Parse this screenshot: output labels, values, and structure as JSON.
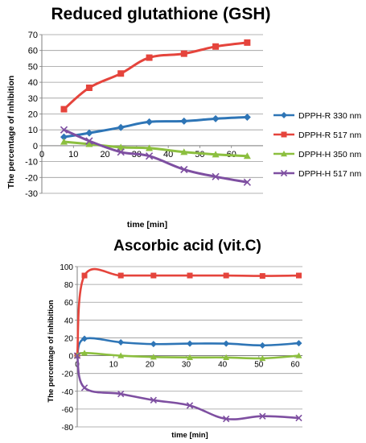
{
  "colors": {
    "blue": "#2E75B6",
    "red": "#E5443C",
    "green": "#8CBF3F",
    "purple": "#7E4FA1",
    "grid": "#9a9a9a",
    "axis": "#7f7f7f"
  },
  "chart_data": [
    {
      "type": "line",
      "title": "Reduced glutathione (GSH)",
      "xlabel": "time  [min]",
      "ylabel": "The percentage of inhibition",
      "xlim": [
        0,
        70
      ],
      "ylim": [
        -30,
        70
      ],
      "x_ticks": [
        0,
        10,
        20,
        30,
        40,
        50,
        60
      ],
      "y_ticks": [
        -30,
        -20,
        -10,
        0,
        10,
        20,
        30,
        40,
        50,
        60,
        70
      ],
      "grid": "horizontal",
      "legend": "right",
      "series": [
        {
          "name": "DPPH-R 330 nm",
          "color": "blue",
          "marker": "diamond",
          "x": [
            7,
            15,
            25,
            34,
            45,
            55,
            65
          ],
          "y": [
            5.5,
            8,
            11.5,
            15,
            15.5,
            17,
            18
          ]
        },
        {
          "name": "DPPH-R 517 nm",
          "color": "red",
          "marker": "square",
          "x": [
            7,
            15,
            25,
            34,
            45,
            55,
            65
          ],
          "y": [
            23,
            36.5,
            45.5,
            55.5,
            58,
            62.5,
            65
          ]
        },
        {
          "name": "DPPH-H 350 nm",
          "color": "green",
          "marker": "triangle",
          "x": [
            7,
            15,
            25,
            34,
            45,
            55,
            65
          ],
          "y": [
            2.5,
            1,
            -1,
            -1.5,
            -4,
            -5.5,
            -6.5
          ]
        },
        {
          "name": "DPPH-H 517 nm",
          "color": "purple",
          "marker": "x",
          "x": [
            7,
            15,
            25,
            34,
            45,
            55,
            65
          ],
          "y": [
            10,
            3,
            -4,
            -6.5,
            -15,
            -19.5,
            -23
          ]
        }
      ]
    },
    {
      "type": "line",
      "title": "Ascorbic acid (vit.C)",
      "xlabel": "time [min]",
      "ylabel": "The percentage of inhibition",
      "xlim": [
        0,
        62
      ],
      "ylim": [
        -80,
        100
      ],
      "x_ticks": [
        0,
        10,
        20,
        30,
        40,
        50,
        60
      ],
      "y_ticks": [
        -80,
        -60,
        -40,
        -20,
        0,
        20,
        40,
        60,
        80,
        100
      ],
      "grid": "horizontal",
      "legend": "none",
      "series": [
        {
          "color": "blue",
          "marker": "diamond",
          "x": [
            0,
            2,
            12,
            21,
            31,
            41,
            51,
            61
          ],
          "y": [
            0,
            19,
            15,
            13,
            13.5,
            13.5,
            11.5,
            14
          ]
        },
        {
          "color": "red",
          "marker": "square",
          "x": [
            0,
            2,
            12,
            21,
            31,
            41,
            51,
            61
          ],
          "y": [
            0,
            90,
            90,
            90,
            90,
            90,
            89.5,
            90
          ]
        },
        {
          "color": "green",
          "marker": "triangle",
          "x": [
            0,
            2,
            12,
            21,
            31,
            41,
            51,
            61
          ],
          "y": [
            0,
            3,
            0,
            -1.5,
            -2,
            -2,
            -3,
            0
          ]
        },
        {
          "color": "purple",
          "marker": "x",
          "x": [
            0,
            2,
            12,
            21,
            31,
            41,
            51,
            61
          ],
          "y": [
            0,
            -36,
            -43,
            -50,
            -56,
            -71,
            -68,
            -70
          ]
        }
      ]
    }
  ]
}
